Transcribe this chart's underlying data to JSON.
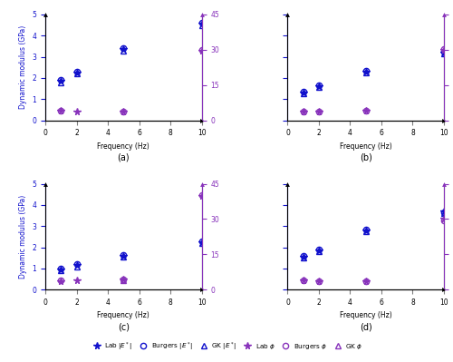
{
  "frequencies": [
    1,
    2,
    5,
    10
  ],
  "subplots": {
    "a": {
      "E_lab": [
        1.85,
        2.25,
        3.35,
        4.55
      ],
      "E_burgers": [
        1.9,
        2.3,
        3.4,
        4.6
      ],
      "E_gk": [
        1.8,
        2.2,
        3.3,
        4.5
      ],
      "phi_lab": [
        3.95,
        3.75,
        3.75,
        29.5
      ],
      "phi_burgers": [
        3.98,
        null,
        3.78,
        29.8
      ],
      "phi_gk": [
        null,
        null,
        null,
        null
      ]
    },
    "b": {
      "E_lab": [
        1.3,
        1.6,
        2.3,
        3.2
      ],
      "E_burgers": [
        1.35,
        1.65,
        2.35,
        3.25
      ],
      "E_gk": [
        1.25,
        1.55,
        2.25,
        3.15
      ],
      "phi_lab": [
        3.85,
        3.75,
        3.95,
        30.0
      ],
      "phi_burgers": [
        3.88,
        3.78,
        3.98,
        30.3
      ],
      "phi_gk": [
        null,
        null,
        null,
        null
      ]
    },
    "c": {
      "E_lab": [
        0.95,
        1.15,
        1.6,
        2.25
      ],
      "E_burgers": [
        1.0,
        1.2,
        1.65,
        2.3
      ],
      "E_gk": [
        0.9,
        1.1,
        1.55,
        2.2
      ],
      "phi_lab": [
        3.6,
        3.95,
        4.45,
        40.0
      ],
      "phi_burgers": [
        3.8,
        null,
        4.2,
        40.2
      ],
      "phi_gk": [
        null,
        null,
        4.05,
        null
      ]
    },
    "d": {
      "E_lab": [
        1.55,
        1.85,
        2.8,
        3.7
      ],
      "E_burgers": [
        1.6,
        1.9,
        2.85,
        3.65
      ],
      "E_gk": [
        1.5,
        1.8,
        2.75,
        3.6
      ],
      "phi_lab": [
        3.85,
        3.55,
        3.55,
        30.0
      ],
      "phi_burgers": [
        3.88,
        3.58,
        3.58,
        29.5
      ],
      "phi_gk": [
        null,
        null,
        null,
        null
      ]
    }
  },
  "color_blue": "#1111cc",
  "color_purple": "#8833bb",
  "ylim_E": [
    0,
    5
  ],
  "ylim_phi": [
    0,
    45
  ],
  "yticks_E": [
    0,
    1,
    2,
    3,
    4,
    5
  ],
  "yticks_phi": [
    0,
    15,
    30,
    45
  ],
  "xlim": [
    0,
    10
  ],
  "xticks": [
    0,
    2,
    4,
    6,
    8,
    10
  ],
  "subplot_labels": [
    "(a)",
    "(b)",
    "(c)",
    "(d)"
  ]
}
